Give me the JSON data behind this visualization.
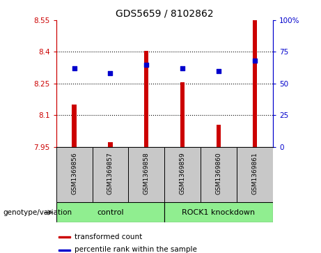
{
  "title": "GDS5659 / 8102862",
  "samples": [
    "GSM1369856",
    "GSM1369857",
    "GSM1369858",
    "GSM1369859",
    "GSM1369860",
    "GSM1369861"
  ],
  "red_values": [
    8.15,
    7.97,
    8.405,
    8.255,
    8.055,
    8.55
  ],
  "blue_values_pct": [
    62,
    58,
    65,
    62,
    60,
    68
  ],
  "ylim_left": [
    7.95,
    8.55
  ],
  "ylim_right": [
    0,
    100
  ],
  "yticks_left": [
    7.95,
    8.1,
    8.25,
    8.4,
    8.55
  ],
  "yticks_right": [
    0,
    25,
    50,
    75,
    100
  ],
  "ytick_labels_left": [
    "7.95",
    "8.1",
    "8.25",
    "8.4",
    "8.55"
  ],
  "ytick_labels_right": [
    "0",
    "25",
    "50",
    "75",
    "100%"
  ],
  "bar_color": "#CC0000",
  "dot_color": "#0000CC",
  "sample_box_color": "#C8C8C8",
  "left_axis_color": "#CC0000",
  "right_axis_color": "#0000CC",
  "legend_red_label": "transformed count",
  "legend_blue_label": "percentile rank within the sample",
  "genotype_label": "genotype/variation",
  "group_data": [
    {
      "label": "control",
      "start": 0,
      "end": 2,
      "color": "#90EE90"
    },
    {
      "label": "ROCK1 knockdown",
      "start": 3,
      "end": 5,
      "color": "#90EE90"
    }
  ],
  "bar_width": 0.12
}
